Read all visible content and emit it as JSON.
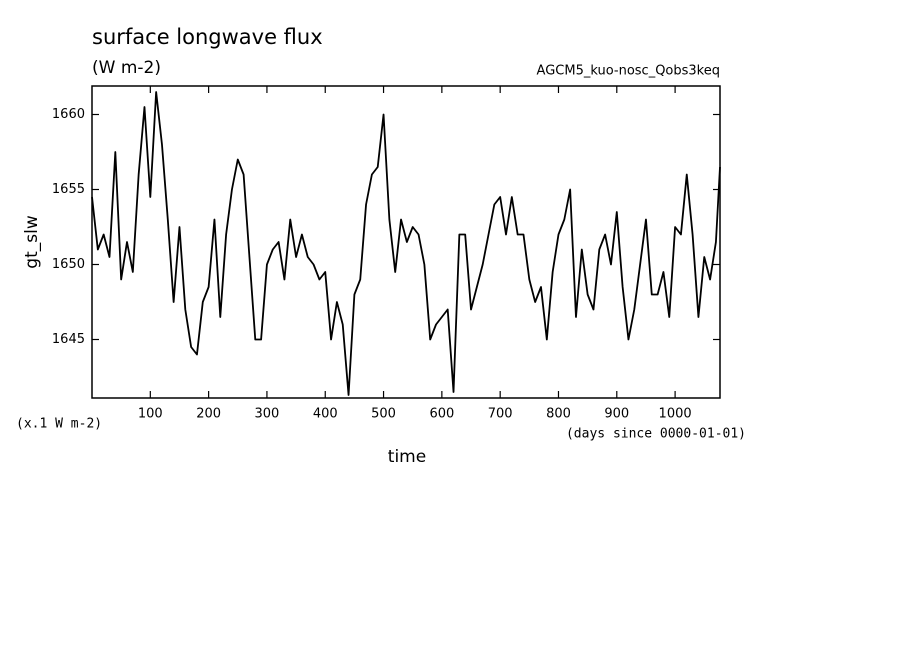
{
  "chart_data": {
    "type": "line",
    "title": "surface longwave flux",
    "subtitle": "(W m-2)",
    "experiment": "AGCM5_kuo-nosc_Qobs3keq",
    "y_label": "gt_slw",
    "y_unit": "(x.1 W m-2)",
    "x_label": "time",
    "x_unit": "(days since 0000-01-01)",
    "xlim": [
      0,
      1077
    ],
    "ylim": [
      1641.1,
      1661.9
    ],
    "xticks": [
      100,
      200,
      300,
      400,
      500,
      600,
      700,
      800,
      900,
      1000
    ],
    "yticks": [
      1645,
      1650,
      1655,
      1660
    ],
    "series": [
      {
        "name": "gt_slw",
        "color": "#000000",
        "x": [
          0,
          10,
          20,
          30,
          40,
          50,
          60,
          70,
          80,
          90,
          100,
          110,
          120,
          130,
          140,
          150,
          160,
          170,
          180,
          190,
          200,
          210,
          220,
          230,
          240,
          250,
          260,
          270,
          280,
          290,
          300,
          310,
          320,
          330,
          340,
          350,
          360,
          370,
          380,
          390,
          400,
          410,
          420,
          430,
          440,
          450,
          460,
          470,
          480,
          490,
          500,
          510,
          520,
          530,
          540,
          550,
          560,
          570,
          580,
          590,
          600,
          610,
          620,
          630,
          640,
          650,
          660,
          670,
          680,
          690,
          700,
          710,
          720,
          730,
          740,
          750,
          760,
          770,
          780,
          790,
          800,
          810,
          820,
          830,
          840,
          850,
          860,
          870,
          880,
          890,
          900,
          910,
          920,
          930,
          940,
          950,
          960,
          970,
          980,
          990,
          1000,
          1010,
          1020,
          1030,
          1040,
          1050,
          1060,
          1070,
          1077
        ],
        "values": [
          1654.5,
          1651,
          1652,
          1650.5,
          1657.5,
          1649,
          1651.5,
          1649.5,
          1656,
          1660.5,
          1654.5,
          1661.5,
          1658,
          1653,
          1647.5,
          1652.5,
          1647,
          1644.5,
          1644,
          1647.5,
          1648.5,
          1653,
          1646.5,
          1652,
          1655,
          1657,
          1656,
          1650.5,
          1645,
          1645,
          1650,
          1651,
          1651.5,
          1649,
          1653,
          1650.5,
          1652,
          1650.5,
          1650,
          1649,
          1649.5,
          1645,
          1647.5,
          1646,
          1641.3,
          1648,
          1649,
          1654,
          1656,
          1656.5,
          1660,
          1653,
          1649.5,
          1653,
          1651.5,
          1652.5,
          1652,
          1650,
          1645,
          1646,
          1646.5,
          1647,
          1641.5,
          1652,
          1652,
          1647,
          1648.5,
          1650,
          1652,
          1654,
          1654.5,
          1652,
          1654.5,
          1652,
          1652,
          1649,
          1647.5,
          1648.5,
          1645,
          1649.5,
          1652,
          1653,
          1655,
          1646.5,
          1651,
          1648,
          1647,
          1651,
          1652,
          1650,
          1653.5,
          1648.5,
          1645,
          1647,
          1650,
          1653,
          1648,
          1648,
          1649.5,
          1646.5,
          1652.5,
          1652,
          1656,
          1652,
          1646.5,
          1650.5,
          1649,
          1651.5,
          1656.5
        ]
      }
    ]
  }
}
